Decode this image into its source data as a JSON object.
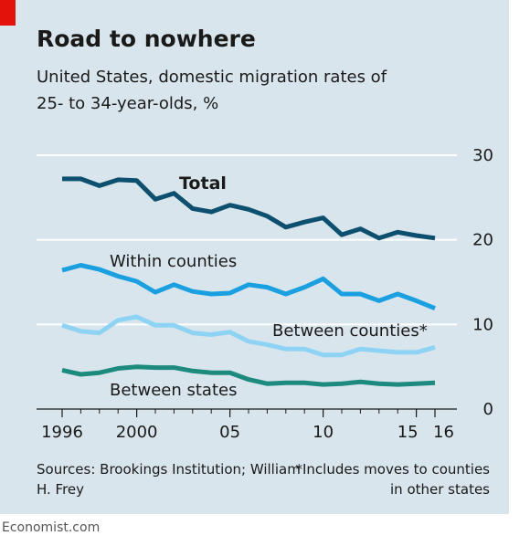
{
  "header": {
    "title": "Road to nowhere",
    "subtitle": "United States, domestic migration rates of 25- to 34-year-olds, %"
  },
  "footer": {
    "source": "Sources: Brookings Institution; William H. Frey",
    "note": "*Includes moves to counties in other states",
    "credit": "Economist.com"
  },
  "colors": {
    "total": "#0d4f6e",
    "within_counties": "#1aa0e0",
    "between_counties": "#8fd3f4",
    "between_states": "#1d8a7e",
    "panel": "#d9e5ec",
    "brand_red": "#e3120b"
  },
  "chart_data": {
    "type": "line",
    "x": [
      1996,
      1997,
      1998,
      1999,
      2000,
      2001,
      2002,
      2003,
      2004,
      2005,
      2006,
      2007,
      2008,
      2009,
      2010,
      2011,
      2012,
      2013,
      2014,
      2015,
      2016
    ],
    "x_tick_values": [
      1996,
      2000,
      2005,
      2010,
      2015,
      2016
    ],
    "x_tick_labels": [
      "1996",
      "2000",
      "05",
      "10",
      "15",
      "16"
    ],
    "ylim": [
      0,
      30
    ],
    "y_ticks": [
      0,
      10,
      20,
      30
    ],
    "y_axis_side": "right",
    "grid": true,
    "series": [
      {
        "name": "Total",
        "key": "total",
        "values": [
          27.2,
          27.2,
          26.4,
          27.1,
          27.0,
          24.8,
          25.5,
          23.7,
          23.3,
          24.1,
          23.6,
          22.8,
          21.5,
          22.1,
          22.6,
          20.6,
          21.3,
          20.2,
          20.9,
          20.5,
          20.2
        ]
      },
      {
        "name": "Within counties",
        "key": "within_counties",
        "values": [
          16.4,
          17.0,
          16.5,
          15.7,
          15.1,
          13.8,
          14.7,
          13.9,
          13.6,
          13.7,
          14.7,
          14.4,
          13.6,
          14.4,
          15.4,
          13.6,
          13.6,
          12.8,
          13.6,
          12.8,
          11.9
        ]
      },
      {
        "name": "Between counties*",
        "key": "between_counties",
        "values": [
          9.9,
          9.2,
          9.0,
          10.5,
          10.9,
          9.9,
          9.9,
          9.0,
          8.8,
          9.1,
          8.0,
          7.6,
          7.1,
          7.1,
          6.4,
          6.4,
          7.1,
          6.9,
          6.7,
          6.7,
          7.3
        ]
      },
      {
        "name": "Between states",
        "key": "between_states",
        "values": [
          4.6,
          4.1,
          4.3,
          4.8,
          5.0,
          4.9,
          4.9,
          4.5,
          4.3,
          4.3,
          3.5,
          3.0,
          3.1,
          3.1,
          2.9,
          3.0,
          3.2,
          3.0,
          2.9,
          3.0,
          3.1
        ]
      }
    ]
  }
}
